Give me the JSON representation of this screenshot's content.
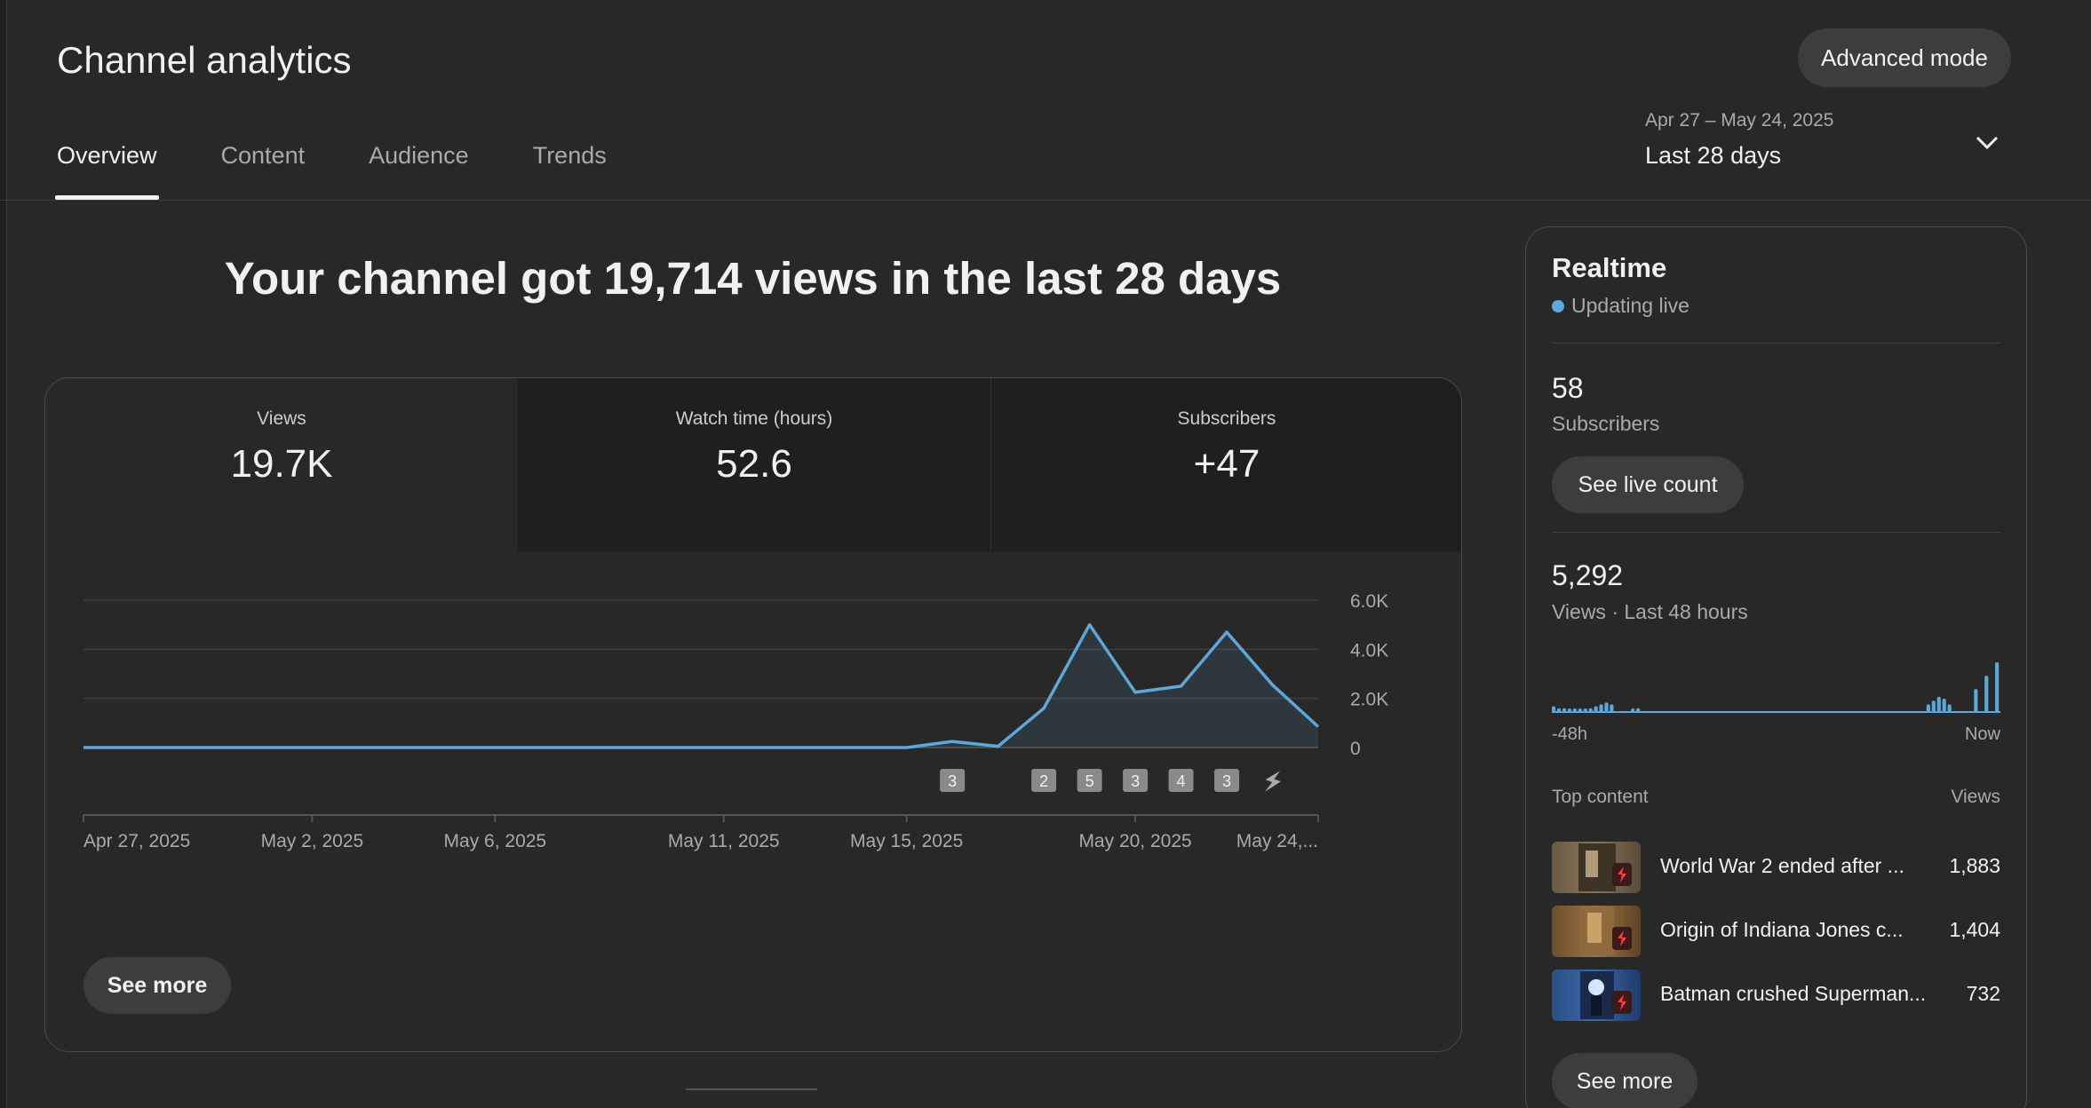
{
  "header": {
    "title": "Channel analytics",
    "advanced_mode_label": "Advanced mode",
    "tabs": [
      {
        "label": "Overview",
        "active": true
      },
      {
        "label": "Content",
        "active": false
      },
      {
        "label": "Audience",
        "active": false
      },
      {
        "label": "Trends",
        "active": false
      }
    ],
    "date_range": "Apr 27 – May 24, 2025",
    "date_period": "Last 28 days",
    "date_dropdown_icon": "chevron-down-icon"
  },
  "headline": "Your channel got 19,714 views in the last 28 days",
  "metrics": [
    {
      "label": "Views",
      "value": "19.7K",
      "selected": true
    },
    {
      "label": "Watch time (hours)",
      "value": "52.6",
      "selected": false
    },
    {
      "label": "Subscribers",
      "value": "+47",
      "selected": false
    }
  ],
  "chart_data": {
    "type": "area",
    "title": "",
    "xlabel": "",
    "ylabel": "",
    "x_tick_labels": [
      "Apr 27, 2025",
      "May 2, 2025",
      "May 6, 2025",
      "May 11, 2025",
      "May 15, 2025",
      "May 20, 2025",
      "May 24,..."
    ],
    "y_tick_labels": [
      "0",
      "2.0K",
      "4.0K",
      "6.0K"
    ],
    "ylim": [
      0,
      6000
    ],
    "grid": true,
    "color": "#5ea8d9",
    "x": [
      "Apr 27",
      "Apr 28",
      "Apr 29",
      "Apr 30",
      "May 1",
      "May 2",
      "May 3",
      "May 4",
      "May 5",
      "May 6",
      "May 7",
      "May 8",
      "May 9",
      "May 10",
      "May 11",
      "May 12",
      "May 13",
      "May 14",
      "May 15",
      "May 16",
      "May 17",
      "May 18",
      "May 19",
      "May 20",
      "May 21",
      "May 22",
      "May 23",
      "May 24"
    ],
    "series": [
      {
        "values": [
          0,
          0,
          0,
          0,
          0,
          0,
          0,
          0,
          0,
          0,
          0,
          0,
          0,
          0,
          0,
          0,
          0,
          0,
          0,
          250,
          50,
          1600,
          5000,
          2250,
          2500,
          4700,
          2550,
          850
        ]
      }
    ],
    "markers": [
      {
        "x": "May 16",
        "count": "3"
      },
      {
        "x": "May 18",
        "count": "2"
      },
      {
        "x": "May 19",
        "count": "5"
      },
      {
        "x": "May 20",
        "count": "3"
      },
      {
        "x": "May 21",
        "count": "4"
      },
      {
        "x": "May 22",
        "count": "3"
      },
      {
        "x": "May 23",
        "icon": "shorts-icon"
      }
    ]
  },
  "see_more_label": "See more",
  "realtime": {
    "title": "Realtime",
    "status": "Updating live",
    "subscribers_value": "58",
    "subscribers_label": "Subscribers",
    "see_live_count_label": "See live count",
    "views_value": "5,292",
    "views_label": "Views · Last 48 hours",
    "axis_start": "-48h",
    "axis_end": "Now",
    "hourly_views": [
      30,
      20,
      20,
      15,
      10,
      10,
      15,
      20,
      30,
      40,
      50,
      40,
      0,
      0,
      0,
      15,
      20,
      0,
      0,
      0,
      0,
      0,
      0,
      0,
      0,
      0,
      0,
      0,
      0,
      0,
      0,
      0,
      0,
      0,
      0,
      0,
      0,
      0,
      0,
      0,
      0,
      0,
      0,
      0,
      0,
      0,
      0,
      0,
      0,
      0,
      0,
      0,
      0,
      0,
      0,
      0,
      0,
      0,
      0,
      0,
      0,
      0,
      0,
      0,
      0,
      0,
      0,
      0,
      0,
      0,
      0,
      40,
      60,
      80,
      70,
      40,
      0,
      0,
      0,
      0,
      120,
      0,
      190,
      0,
      260
    ],
    "top_content_label": "Top content",
    "views_col_label": "Views",
    "top_content": [
      {
        "title": "World War 2 ended after ...",
        "views": "1,883"
      },
      {
        "title": "Origin of Indiana Jones c...",
        "views": "1,404"
      },
      {
        "title": "Batman crushed Superman...",
        "views": "732"
      }
    ],
    "see_more_label": "See more"
  }
}
